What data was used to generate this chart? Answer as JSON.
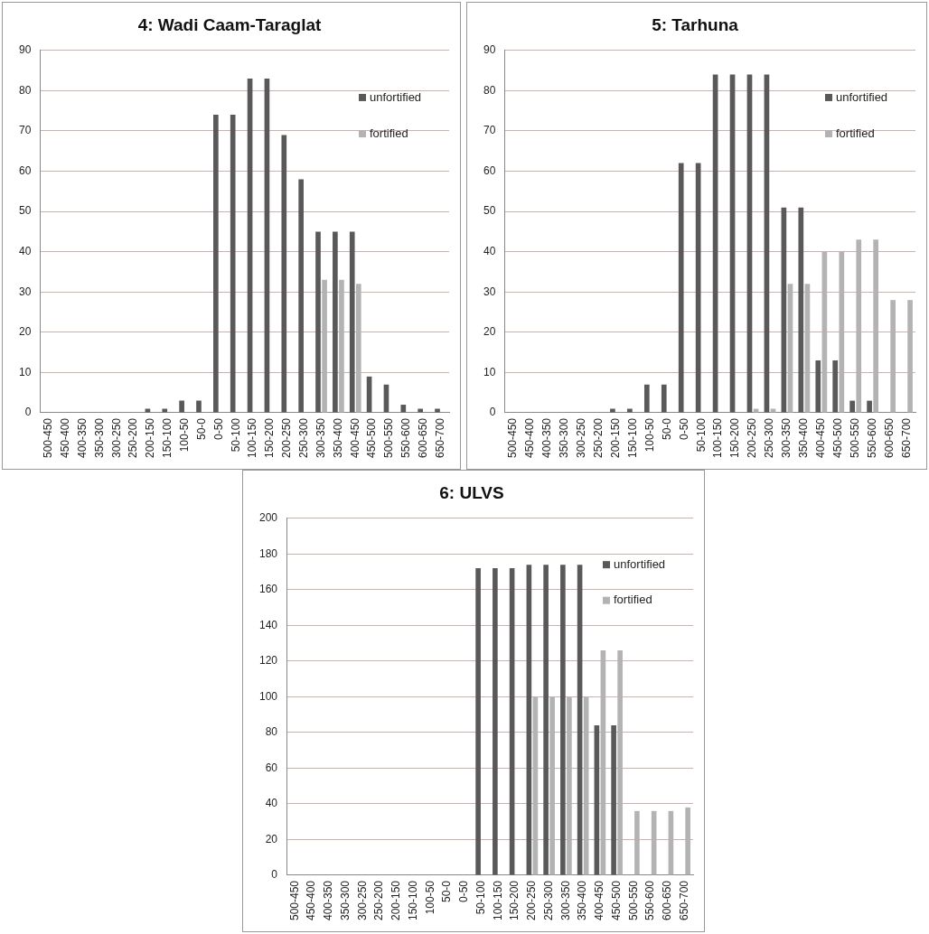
{
  "chart_data": [
    {
      "type": "bar",
      "title": "4: Wadi Caam-Taraglat",
      "categories": [
        "500-450",
        "450-400",
        "400-350",
        "350-300",
        "300-250",
        "250-200",
        "200-150",
        "150-100",
        "100-50",
        "50-0",
        "0-50",
        "50-100",
        "100-150",
        "150-200",
        "200-250",
        "250-300",
        "300-350",
        "350-400",
        "400-450",
        "450-500",
        "500-550",
        "550-600",
        "600-650",
        "650-700"
      ],
      "series": [
        {
          "name": "unfortified",
          "color": "#595959",
          "values": [
            0,
            0,
            0,
            0,
            0,
            0,
            1,
            1,
            3,
            3,
            74,
            74,
            83,
            83,
            69,
            58,
            45,
            45,
            45,
            9,
            7,
            2,
            1,
            1
          ]
        },
        {
          "name": "fortified",
          "color": "#b3b3b3",
          "values": [
            0,
            0,
            0,
            0,
            0,
            0,
            0,
            0,
            0,
            0,
            0,
            0,
            0,
            0,
            0,
            0,
            33,
            33,
            32,
            0,
            0,
            0,
            0,
            0
          ]
        }
      ],
      "ylim": [
        0,
        90
      ],
      "yticks": [
        0,
        10,
        20,
        30,
        40,
        50,
        60,
        70,
        80,
        90
      ],
      "grid": "y",
      "legend": "top right"
    },
    {
      "type": "bar",
      "title": "5: Tarhuna",
      "categories": [
        "500-450",
        "450-400",
        "400-350",
        "350-300",
        "300-250",
        "250-200",
        "200-150",
        "150-100",
        "100-50",
        "50-0",
        "0-50",
        "50-100",
        "100-150",
        "150-200",
        "200-250",
        "250-300",
        "300-350",
        "350-400",
        "400-450",
        "450-500",
        "500-550",
        "550-600",
        "600-650",
        "650-700"
      ],
      "series": [
        {
          "name": "unfortified",
          "color": "#595959",
          "values": [
            0,
            0,
            0,
            0,
            0,
            0,
            1,
            1,
            7,
            7,
            62,
            62,
            84,
            84,
            84,
            84,
            51,
            51,
            13,
            13,
            3,
            3,
            0,
            0
          ]
        },
        {
          "name": "fortified",
          "color": "#b3b3b3",
          "values": [
            0,
            0,
            0,
            0,
            0,
            0,
            0,
            0,
            0,
            0,
            0,
            0,
            0,
            0,
            1,
            1,
            32,
            32,
            40,
            40,
            43,
            43,
            28,
            28
          ]
        }
      ],
      "ylim": [
        0,
        90
      ],
      "yticks": [
        0,
        10,
        20,
        30,
        40,
        50,
        60,
        70,
        80,
        90
      ],
      "grid": "y",
      "legend": "top right"
    },
    {
      "type": "bar",
      "title": "6: ULVS",
      "categories": [
        "500-450",
        "450-400",
        "400-350",
        "350-300",
        "300-250",
        "250-200",
        "200-150",
        "150-100",
        "100-50",
        "50-0",
        "0-50",
        "50-100",
        "100-150",
        "150-200",
        "200-250",
        "250-300",
        "300-350",
        "350-400",
        "400-450",
        "450-500",
        "500-550",
        "550-600",
        "600-650",
        "650-700"
      ],
      "series": [
        {
          "name": "unfortified",
          "color": "#595959",
          "values": [
            0,
            0,
            0,
            0,
            0,
            0,
            0,
            0,
            0,
            0,
            0,
            172,
            172,
            172,
            174,
            174,
            174,
            174,
            84,
            84,
            0,
            0,
            0,
            0
          ]
        },
        {
          "name": "fortified",
          "color": "#b3b3b3",
          "values": [
            0,
            0,
            0,
            0,
            0,
            0,
            0,
            0,
            0,
            0,
            0,
            0,
            0,
            0,
            100,
            100,
            100,
            100,
            126,
            126,
            36,
            36,
            36,
            38
          ]
        }
      ],
      "ylim": [
        0,
        200
      ],
      "yticks": [
        0,
        20,
        40,
        60,
        80,
        100,
        120,
        140,
        160,
        180,
        200
      ],
      "grid": "y",
      "legend": "top right"
    }
  ]
}
